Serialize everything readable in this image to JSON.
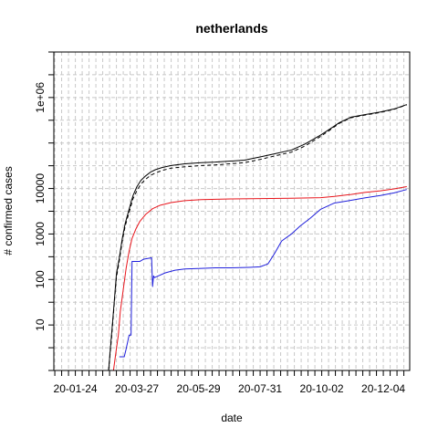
{
  "chart_data": {
    "type": "line",
    "title": "netherlands",
    "xlabel": "date",
    "ylabel": "# confirmed cases",
    "y_scale": "log",
    "xlim": [
      "2020-01-02",
      "2020-12-31"
    ],
    "ylim": [
      1,
      10000000.0
    ],
    "x_tick_labels": [
      "20-01-24",
      "20-03-27",
      "20-05-29",
      "20-07-31",
      "20-10-02",
      "20-12-04"
    ],
    "x_tick_dates": [
      "2020-01-24",
      "2020-03-27",
      "2020-05-29",
      "2020-07-31",
      "2020-10-02",
      "2020-12-04"
    ],
    "y_tick_labels": [
      "10",
      "100",
      "1000",
      "10000",
      "1e+06"
    ],
    "y_tick_values": [
      10,
      100,
      1000,
      10000,
      1000000
    ],
    "grid": true,
    "colors": {
      "black": "#000000",
      "red": "#e8141b",
      "blue": "#1f1fdc"
    },
    "series": [
      {
        "color": "#000000",
        "style": "solid",
        "x": [
          "2020-02-27",
          "2020-03-01",
          "2020-03-03",
          "2020-03-06",
          "2020-03-09",
          "2020-03-12",
          "2020-03-15",
          "2020-03-19",
          "2020-03-23",
          "2020-03-27",
          "2020-03-31",
          "2020-04-05",
          "2020-04-10",
          "2020-04-15",
          "2020-04-22",
          "2020-05-01",
          "2020-05-15",
          "2020-06-01",
          "2020-06-15",
          "2020-07-01",
          "2020-07-15",
          "2020-08-01",
          "2020-08-15",
          "2020-09-01",
          "2020-09-15",
          "2020-10-01",
          "2020-10-10",
          "2020-10-20",
          "2020-11-01",
          "2020-11-15",
          "2020-12-01",
          "2020-12-15",
          "2020-12-28"
        ],
        "y": [
          1,
          6,
          20,
          130,
          300,
          800,
          1700,
          3500,
          7000,
          11000,
          15000,
          19000,
          23000,
          26000,
          29000,
          32000,
          35000,
          37000,
          38000,
          40000,
          42000,
          50000,
          58000,
          70000,
          95000,
          150000,
          200000,
          280000,
          370000,
          420000,
          480000,
          560000,
          700000
        ]
      },
      {
        "color": "#000000",
        "style": "dashed",
        "x": [
          "2020-02-27",
          "2020-03-01",
          "2020-03-03",
          "2020-03-06",
          "2020-03-09",
          "2020-03-12",
          "2020-03-15",
          "2020-03-19",
          "2020-03-23",
          "2020-03-27",
          "2020-03-31",
          "2020-04-05",
          "2020-04-10",
          "2020-04-15",
          "2020-04-22",
          "2020-05-01",
          "2020-05-15",
          "2020-06-01",
          "2020-06-15",
          "2020-07-01",
          "2020-07-15",
          "2020-08-01",
          "2020-08-15",
          "2020-09-01",
          "2020-09-15",
          "2020-10-01",
          "2020-10-10",
          "2020-10-20",
          "2020-11-01",
          "2020-11-15",
          "2020-12-01",
          "2020-12-15",
          "2020-12-28"
        ],
        "y": [
          1,
          5,
          18,
          110,
          260,
          700,
          1500,
          3000,
          6000,
          9000,
          12500,
          16000,
          19500,
          22000,
          25000,
          28000,
          30000,
          32000,
          33000,
          35000,
          37000,
          44000,
          52000,
          63000,
          86000,
          140000,
          190000,
          270000,
          360000,
          410000,
          470000,
          550000,
          690000
        ]
      },
      {
        "color": "#e8141b",
        "style": "solid",
        "x": [
          "2020-03-03",
          "2020-03-06",
          "2020-03-08",
          "2020-03-10",
          "2020-03-13",
          "2020-03-16",
          "2020-03-19",
          "2020-03-22",
          "2020-03-26",
          "2020-03-30",
          "2020-04-05",
          "2020-04-12",
          "2020-04-20",
          "2020-05-01",
          "2020-05-15",
          "2020-06-01",
          "2020-07-01",
          "2020-08-01",
          "2020-09-01",
          "2020-10-01",
          "2020-10-15",
          "2020-11-01",
          "2020-11-15",
          "2020-12-01",
          "2020-12-15",
          "2020-12-28"
        ],
        "y": [
          1,
          3,
          6,
          20,
          60,
          180,
          420,
          800,
          1300,
          1900,
          2700,
          3600,
          4300,
          4900,
          5400,
          5700,
          5900,
          6000,
          6100,
          6300,
          6700,
          7400,
          8200,
          8900,
          9800,
          11000
        ]
      },
      {
        "color": "#1f1fdc",
        "style": "solid",
        "x": [
          "2020-03-09",
          "2020-03-14",
          "2020-03-16",
          "2020-03-19",
          "2020-03-21",
          "2020-03-22",
          "2020-03-23",
          "2020-03-30",
          "2020-04-03",
          "2020-04-11",
          "2020-04-12",
          "2020-04-13",
          "2020-04-14",
          "2020-04-18",
          "2020-04-25",
          "2020-05-05",
          "2020-05-15",
          "2020-06-01",
          "2020-06-15",
          "2020-07-01",
          "2020-07-20",
          "2020-07-31",
          "2020-08-08",
          "2020-08-15",
          "2020-08-22",
          "2020-09-01",
          "2020-09-10",
          "2020-09-20",
          "2020-10-01",
          "2020-10-15",
          "2020-11-01",
          "2020-11-15",
          "2020-12-01",
          "2020-12-15",
          "2020-12-28"
        ],
        "y": [
          2,
          2,
          3,
          6,
          6,
          250,
          250,
          250,
          280,
          300,
          70,
          120,
          110,
          120,
          140,
          160,
          170,
          175,
          180,
          180,
          185,
          190,
          220,
          380,
          700,
          1000,
          1500,
          2200,
          3500,
          4800,
          5500,
          6200,
          7000,
          8000,
          9500
        ]
      }
    ]
  }
}
